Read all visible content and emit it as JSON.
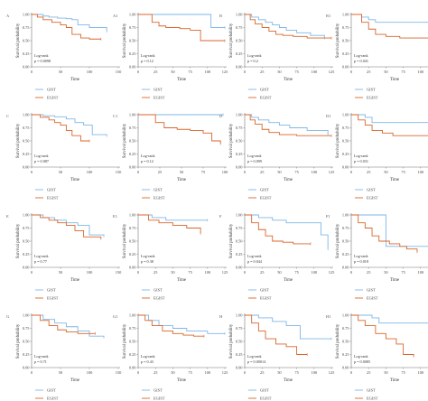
{
  "colors": {
    "gist": "#7fb7e6",
    "egist": "#d9662b"
  },
  "legend": {
    "gist": "GIST",
    "egist": "EGIST"
  },
  "common": {
    "ylabel": "Survival probability",
    "xlabel": "Time",
    "yticks": [
      "0.00",
      "0.25",
      "0.50",
      "0.75",
      "1.00"
    ],
    "logrank_label": "Log-rank"
  },
  "chart_data": [
    {
      "type": "line",
      "panel": "A",
      "row": 0,
      "col": 0,
      "xticks": [
        0,
        50,
        100,
        150
      ],
      "xlim": [
        0,
        150
      ],
      "ylim": [
        0,
        1
      ],
      "p": "p = 0.0098",
      "series": [
        {
          "name": "GIST",
          "x": [
            0,
            20,
            30,
            45,
            60,
            70,
            80,
            100,
            130
          ],
          "y": [
            1.0,
            0.97,
            0.95,
            0.93,
            0.92,
            0.9,
            0.8,
            0.75,
            0.68
          ]
        },
        {
          "name": "EGIST",
          "x": [
            0,
            10,
            20,
            35,
            50,
            60,
            70,
            85,
            100,
            120
          ],
          "y": [
            1.0,
            0.95,
            0.9,
            0.85,
            0.8,
            0.75,
            0.62,
            0.55,
            0.53,
            0.53
          ]
        }
      ]
    },
    {
      "type": "line",
      "panel": "A1",
      "row": 0,
      "col": 1,
      "xticks": [
        0,
        25,
        50,
        75,
        100,
        125
      ],
      "xlim": [
        0,
        125
      ],
      "ylim": [
        0,
        1
      ],
      "p": "p = 0.12",
      "series": [
        {
          "name": "GIST",
          "x": [
            0,
            95,
            105,
            125
          ],
          "y": [
            1.0,
            1.0,
            0.75,
            0.75
          ]
        },
        {
          "name": "EGIST",
          "x": [
            0,
            20,
            30,
            40,
            60,
            75,
            90,
            125
          ],
          "y": [
            1.0,
            0.85,
            0.78,
            0.75,
            0.73,
            0.7,
            0.5,
            0.5
          ]
        }
      ]
    },
    {
      "type": "line",
      "panel": "B",
      "row": 0,
      "col": 2,
      "xticks": [
        0,
        25,
        50,
        75,
        100,
        125
      ],
      "xlim": [
        0,
        125
      ],
      "ylim": [
        0,
        1
      ],
      "p": "p = 0.2",
      "series": [
        {
          "name": "GIST",
          "x": [
            0,
            10,
            20,
            30,
            40,
            50,
            60,
            75,
            95,
            115
          ],
          "y": [
            1.0,
            0.95,
            0.9,
            0.85,
            0.8,
            0.75,
            0.7,
            0.65,
            0.6,
            0.55
          ]
        },
        {
          "name": "EGIST",
          "x": [
            0,
            8,
            15,
            25,
            35,
            45,
            55,
            70,
            90,
            125
          ],
          "y": [
            1.0,
            0.9,
            0.82,
            0.75,
            0.68,
            0.62,
            0.6,
            0.58,
            0.55,
            0.55
          ]
        }
      ]
    },
    {
      "type": "line",
      "panel": "B1",
      "row": 0,
      "col": 3,
      "xticks": [
        0,
        25,
        50,
        75,
        100,
        125
      ],
      "xlim": [
        0,
        125
      ],
      "ylim": [
        0,
        1
      ],
      "p": "p = 0.041",
      "series": [
        {
          "name": "GIST",
          "x": [
            0,
            15,
            25,
            35,
            125
          ],
          "y": [
            1.0,
            0.95,
            0.9,
            0.85,
            0.85
          ]
        },
        {
          "name": "EGIST",
          "x": [
            0,
            15,
            25,
            35,
            50,
            70,
            125
          ],
          "y": [
            1.0,
            0.85,
            0.72,
            0.62,
            0.58,
            0.55,
            0.55
          ]
        }
      ]
    },
    {
      "type": "line",
      "panel": "C",
      "row": 1,
      "col": 0,
      "xticks": [
        0,
        50,
        100,
        150
      ],
      "xlim": [
        0,
        150
      ],
      "ylim": [
        0,
        1
      ],
      "p": "p = 0.087",
      "series": [
        {
          "name": "GIST",
          "x": [
            0,
            20,
            40,
            60,
            75,
            90,
            105,
            130
          ],
          "y": [
            1.0,
            0.98,
            0.96,
            0.92,
            0.85,
            0.8,
            0.62,
            0.6
          ]
        },
        {
          "name": "EGIST",
          "x": [
            0,
            15,
            30,
            40,
            50,
            60,
            70,
            85,
            100
          ],
          "y": [
            1.0,
            0.95,
            0.9,
            0.85,
            0.8,
            0.7,
            0.6,
            0.5,
            0.5
          ]
        }
      ]
    },
    {
      "type": "line",
      "panel": "C1",
      "row": 1,
      "col": 1,
      "xticks": [
        0,
        25,
        50,
        75,
        100
      ],
      "xlim": [
        0,
        100
      ],
      "ylim": [
        0,
        1
      ],
      "p": "p = 0.12",
      "series": [
        {
          "name": "GIST",
          "x": [
            0,
            98
          ],
          "y": [
            1.0,
            1.0
          ]
        },
        {
          "name": "EGIST",
          "x": [
            0,
            20,
            30,
            45,
            60,
            75,
            85,
            95
          ],
          "y": [
            1.0,
            0.85,
            0.75,
            0.72,
            0.7,
            0.65,
            0.5,
            0.45
          ]
        }
      ]
    },
    {
      "type": "line",
      "panel": "D",
      "row": 1,
      "col": 2,
      "xticks": [
        0,
        25,
        50,
        75,
        100,
        125
      ],
      "xlim": [
        0,
        125
      ],
      "ylim": [
        0,
        1
      ],
      "p": "p = 0.099",
      "series": [
        {
          "name": "GIST",
          "x": [
            0,
            10,
            20,
            35,
            50,
            65,
            90,
            120
          ],
          "y": [
            1.0,
            0.95,
            0.9,
            0.85,
            0.8,
            0.75,
            0.7,
            0.62
          ]
        },
        {
          "name": "EGIST",
          "x": [
            0,
            8,
            15,
            25,
            35,
            50,
            75,
            125
          ],
          "y": [
            1.0,
            0.9,
            0.82,
            0.72,
            0.66,
            0.62,
            0.6,
            0.6
          ]
        }
      ]
    },
    {
      "type": "line",
      "panel": "D1",
      "row": 1,
      "col": 3,
      "xticks": [
        0,
        25,
        50,
        75,
        100,
        125
      ],
      "xlim": [
        0,
        125
      ],
      "ylim": [
        0,
        1
      ],
      "p": "p = 0.031",
      "series": [
        {
          "name": "GIST",
          "x": [
            0,
            20,
            30,
            125
          ],
          "y": [
            1.0,
            0.95,
            0.85,
            0.85
          ]
        },
        {
          "name": "EGIST",
          "x": [
            0,
            10,
            20,
            30,
            45,
            60,
            125
          ],
          "y": [
            1.0,
            0.9,
            0.8,
            0.7,
            0.65,
            0.6,
            0.6
          ]
        }
      ]
    },
    {
      "type": "line",
      "panel": "E",
      "row": 2,
      "col": 0,
      "xticks": [
        0,
        50,
        100,
        150
      ],
      "xlim": [
        0,
        150
      ],
      "ylim": [
        0,
        1
      ],
      "p": "p = 0.77",
      "series": [
        {
          "name": "GIST",
          "x": [
            0,
            20,
            40,
            60,
            80,
            100,
            125
          ],
          "y": [
            1.0,
            0.95,
            0.9,
            0.85,
            0.8,
            0.62,
            0.6
          ]
        },
        {
          "name": "EGIST",
          "x": [
            0,
            15,
            30,
            45,
            60,
            75,
            90,
            120
          ],
          "y": [
            1.0,
            0.95,
            0.9,
            0.85,
            0.8,
            0.7,
            0.58,
            0.55
          ]
        }
      ]
    },
    {
      "type": "line",
      "panel": "E1",
      "row": 2,
      "col": 1,
      "xticks": [
        0,
        25,
        50,
        75,
        100,
        125
      ],
      "xlim": [
        0,
        125
      ],
      "ylim": [
        0,
        1
      ],
      "p": "p = 0.38",
      "series": [
        {
          "name": "GIST",
          "x": [
            0,
            20,
            40,
            100
          ],
          "y": [
            1.0,
            0.95,
            0.9,
            0.9
          ]
        },
        {
          "name": "EGIST",
          "x": [
            0,
            15,
            30,
            50,
            70,
            90
          ],
          "y": [
            1.0,
            0.9,
            0.85,
            0.8,
            0.75,
            0.65
          ]
        }
      ]
    },
    {
      "type": "line",
      "panel": "F",
      "row": 2,
      "col": 2,
      "xticks": [
        0,
        25,
        50,
        75,
        100,
        125
      ],
      "xlim": [
        0,
        125
      ],
      "ylim": [
        0,
        1
      ],
      "p": "p = 0.044",
      "series": [
        {
          "name": "GIST",
          "x": [
            0,
            20,
            40,
            60,
            110,
            120
          ],
          "y": [
            1.0,
            0.95,
            0.9,
            0.85,
            0.62,
            0.35
          ]
        },
        {
          "name": "EGIST",
          "x": [
            0,
            10,
            20,
            30,
            40,
            55,
            70,
            95
          ],
          "y": [
            1.0,
            0.85,
            0.72,
            0.6,
            0.5,
            0.48,
            0.45,
            0.45
          ]
        }
      ]
    },
    {
      "type": "line",
      "panel": "F1",
      "row": 2,
      "col": 3,
      "xticks": [
        0,
        25,
        50,
        75,
        100,
        125
      ],
      "xlim": [
        0,
        125
      ],
      "ylim": [
        0,
        1
      ],
      "p": "p = 0.018",
      "series": [
        {
          "name": "GIST",
          "x": [
            0,
            40,
            50,
            125
          ],
          "y": [
            1.0,
            1.0,
            0.4,
            0.4
          ]
        },
        {
          "name": "EGIST",
          "x": [
            0,
            10,
            20,
            30,
            40,
            55,
            70,
            80,
            95
          ],
          "y": [
            1.0,
            0.85,
            0.75,
            0.6,
            0.5,
            0.45,
            0.4,
            0.35,
            0.3
          ]
        }
      ]
    },
    {
      "type": "line",
      "panel": "G",
      "row": 3,
      "col": 0,
      "xticks": [
        0,
        50,
        100,
        150
      ],
      "xlim": [
        0,
        150
      ],
      "ylim": [
        0,
        1
      ],
      "p": "p = 0.71",
      "series": [
        {
          "name": "GIST",
          "x": [
            0,
            20,
            40,
            60,
            80,
            100,
            125
          ],
          "y": [
            1.0,
            0.92,
            0.85,
            0.78,
            0.7,
            0.6,
            0.58
          ]
        },
        {
          "name": "EGIST",
          "x": [
            0,
            15,
            30,
            45,
            60,
            80,
            110
          ],
          "y": [
            1.0,
            0.9,
            0.8,
            0.72,
            0.68,
            0.65,
            0.65
          ]
        }
      ]
    },
    {
      "type": "line",
      "panel": "G1",
      "row": 3,
      "col": 1,
      "xticks": [
        0,
        25,
        50,
        75,
        100,
        125
      ],
      "xlim": [
        0,
        125
      ],
      "ylim": [
        0,
        1
      ],
      "p": "p = 0.43",
      "series": [
        {
          "name": "GIST",
          "x": [
            0,
            15,
            30,
            50,
            70,
            100,
            125
          ],
          "y": [
            1.0,
            0.9,
            0.8,
            0.75,
            0.7,
            0.65,
            0.65
          ]
        },
        {
          "name": "EGIST",
          "x": [
            0,
            10,
            20,
            35,
            50,
            65,
            80,
            95
          ],
          "y": [
            1.0,
            0.9,
            0.8,
            0.7,
            0.65,
            0.62,
            0.6,
            0.6
          ]
        }
      ]
    },
    {
      "type": "line",
      "panel": "H",
      "row": 3,
      "col": 2,
      "xticks": [
        0,
        25,
        50,
        75,
        100,
        125
      ],
      "xlim": [
        0,
        125
      ],
      "ylim": [
        0,
        1
      ],
      "p": "p = 0.00014",
      "series": [
        {
          "name": "GIST",
          "x": [
            0,
            20,
            40,
            60,
            80,
            125
          ],
          "y": [
            1.0,
            0.95,
            0.88,
            0.8,
            0.55,
            0.55
          ]
        },
        {
          "name": "EGIST",
          "x": [
            0,
            10,
            20,
            30,
            45,
            60,
            75,
            90
          ],
          "y": [
            1.0,
            0.85,
            0.7,
            0.55,
            0.45,
            0.4,
            0.25,
            0.25
          ]
        }
      ]
    },
    {
      "type": "line",
      "panel": "H1",
      "row": 3,
      "col": 3,
      "xticks": [
        0,
        25,
        50,
        75,
        100,
        125
      ],
      "xlim": [
        0,
        125
      ],
      "ylim": [
        0,
        1
      ],
      "p": "p = 0.0085",
      "series": [
        {
          "name": "GIST",
          "x": [
            0,
            30,
            40,
            125
          ],
          "y": [
            1.0,
            0.95,
            0.85,
            0.85
          ]
        },
        {
          "name": "EGIST",
          "x": [
            0,
            10,
            20,
            35,
            50,
            65,
            75,
            90
          ],
          "y": [
            1.0,
            0.9,
            0.8,
            0.65,
            0.55,
            0.45,
            0.25,
            0.22
          ]
        }
      ]
    }
  ]
}
